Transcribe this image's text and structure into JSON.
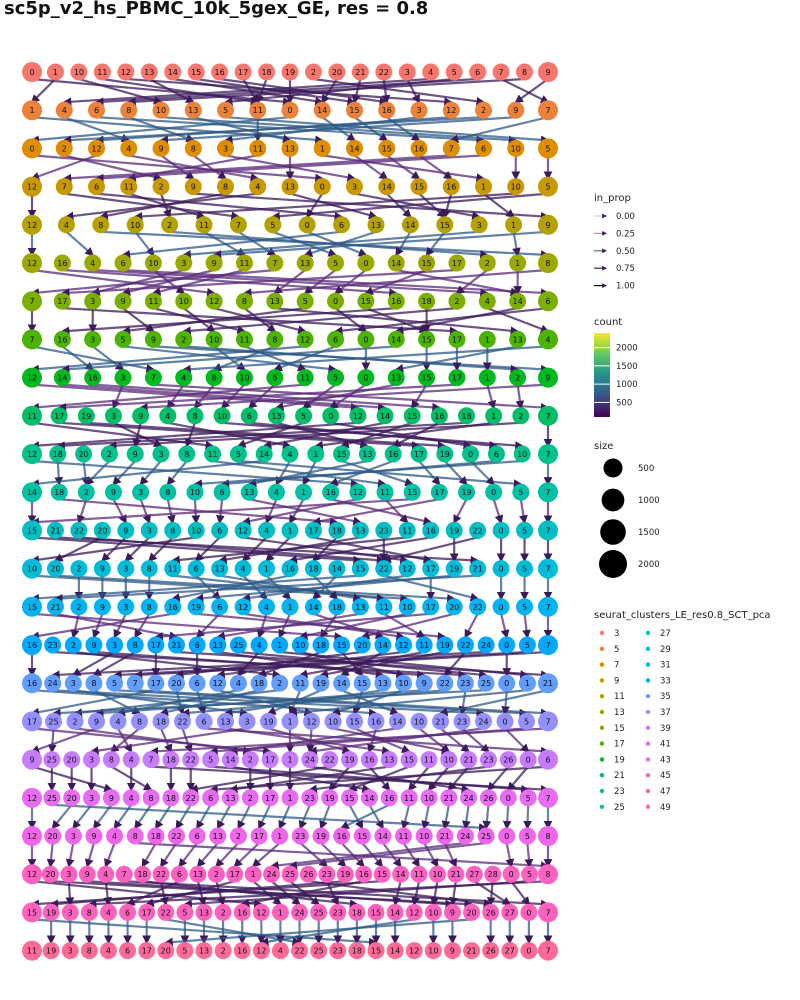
{
  "chart_data": {
    "type": "clustree",
    "title": "sc5p_v2_hs_PBMC_10k_5gex_GE, res = 0.8",
    "legend_in_prop": {
      "title": "in_prop",
      "entries": [
        "0.00",
        "0.25",
        "0.50",
        "0.75",
        "1.00"
      ]
    },
    "legend_count": {
      "title": "count",
      "ticks": [
        {
          "label": "2000",
          "value": 2000
        },
        {
          "label": "1500",
          "value": 1500
        },
        {
          "label": "1000",
          "value": 1000
        },
        {
          "label": "500",
          "value": 500
        }
      ],
      "range": [
        100,
        2400
      ]
    },
    "legend_size": {
      "title": "size",
      "entries": [
        {
          "label": "500",
          "value": 500
        },
        {
          "label": "1000",
          "value": 1000
        },
        {
          "label": "1500",
          "value": 1500
        },
        {
          "label": "2000",
          "value": 2000
        }
      ]
    },
    "legend_clusters": {
      "title": "seurat_clusters_LE_res0.8_SCT_pca",
      "levels": [
        "3",
        "5",
        "7",
        "9",
        "11",
        "13",
        "15",
        "17",
        "19",
        "21",
        "23",
        "25",
        "27",
        "29",
        "31",
        "33",
        "35",
        "37",
        "39",
        "41",
        "43",
        "45",
        "47",
        "49"
      ],
      "colors": [
        "#F8766D",
        "#EC8239",
        "#DE8C00",
        "#C99800",
        "#B4A100",
        "#9CA700",
        "#7CAE00",
        "#4CB400",
        "#00B81F",
        "#00BE67",
        "#00C08B",
        "#00C0A5",
        "#00BFC4",
        "#00BCD8",
        "#00B4EF",
        "#00A9FF",
        "#619CFF",
        "#9590FF",
        "#C77CFF",
        "#E76BF3",
        "#F066EA",
        "#FF61C3",
        "#FF62BC",
        "#FF6A98"
      ]
    },
    "rows": [
      {
        "level": "3",
        "nodes": [
          "0",
          "1",
          "10",
          "11",
          "12",
          "13",
          "14",
          "15",
          "16",
          "17",
          "18",
          "19",
          "2",
          "20",
          "21",
          "22",
          "3",
          "4",
          "5",
          "6",
          "7",
          "8",
          "9"
        ]
      },
      {
        "level": "5",
        "nodes": [
          "1",
          "4",
          "6",
          "8",
          "10",
          "13",
          "5",
          "11",
          "0",
          "14",
          "15",
          "16",
          "3",
          "12",
          "2",
          "9",
          "7"
        ]
      },
      {
        "level": "7",
        "nodes": [
          "0",
          "2",
          "12",
          "4",
          "9",
          "8",
          "3",
          "11",
          "13",
          "1",
          "14",
          "15",
          "16",
          "7",
          "6",
          "10",
          "5"
        ]
      },
      {
        "level": "9",
        "nodes": [
          "12",
          "7",
          "6",
          "11",
          "2",
          "9",
          "8",
          "4",
          "13",
          "0",
          "3",
          "14",
          "15",
          "16",
          "1",
          "10",
          "5"
        ]
      },
      {
        "level": "11",
        "nodes": [
          "12",
          "4",
          "8",
          "10",
          "2",
          "11",
          "7",
          "5",
          "0",
          "6",
          "13",
          "14",
          "15",
          "3",
          "1",
          "9"
        ]
      },
      {
        "level": "13",
        "nodes": [
          "12",
          "16",
          "4",
          "6",
          "10",
          "3",
          "9",
          "11",
          "7",
          "13",
          "5",
          "0",
          "14",
          "15",
          "17",
          "2",
          "1",
          "8"
        ]
      },
      {
        "level": "15",
        "nodes": [
          "7",
          "17",
          "3",
          "9",
          "11",
          "10",
          "12",
          "8",
          "13",
          "5",
          "0",
          "15",
          "16",
          "18",
          "2",
          "4",
          "14",
          "6"
        ]
      },
      {
        "level": "17",
        "nodes": [
          "7",
          "16",
          "3",
          "5",
          "9",
          "2",
          "10",
          "11",
          "8",
          "12",
          "6",
          "0",
          "14",
          "15",
          "17",
          "1",
          "13",
          "4"
        ]
      },
      {
        "level": "19",
        "nodes": [
          "12",
          "14",
          "16",
          "3",
          "7",
          "4",
          "8",
          "10",
          "6",
          "11",
          "5",
          "0",
          "13",
          "15",
          "17",
          "1",
          "2",
          "9"
        ]
      },
      {
        "level": "21",
        "nodes": [
          "11",
          "17",
          "19",
          "3",
          "9",
          "4",
          "8",
          "10",
          "6",
          "13",
          "5",
          "0",
          "12",
          "14",
          "15",
          "16",
          "18",
          "1",
          "2",
          "7"
        ]
      },
      {
        "level": "23",
        "nodes": [
          "12",
          "18",
          "20",
          "2",
          "9",
          "3",
          "8",
          "11",
          "5",
          "14",
          "4",
          "1",
          "15",
          "13",
          "16",
          "17",
          "19",
          "0",
          "6",
          "10",
          "7"
        ]
      },
      {
        "level": "25",
        "nodes": [
          "14",
          "18",
          "2",
          "9",
          "3",
          "8",
          "10",
          "6",
          "13",
          "4",
          "1",
          "16",
          "12",
          "11",
          "15",
          "17",
          "19",
          "0",
          "5",
          "7"
        ]
      },
      {
        "level": "27",
        "nodes": [
          "15",
          "21",
          "22",
          "20",
          "9",
          "3",
          "8",
          "10",
          "6",
          "12",
          "4",
          "1",
          "17",
          "18",
          "13",
          "23",
          "11",
          "16",
          "19",
          "22",
          "0",
          "5",
          "7"
        ]
      },
      {
        "level": "29",
        "nodes": [
          "10",
          "20",
          "2",
          "9",
          "3",
          "8",
          "11",
          "6",
          "13",
          "4",
          "1",
          "16",
          "18",
          "14",
          "15",
          "22",
          "12",
          "17",
          "19",
          "21",
          "0",
          "5",
          "7"
        ]
      },
      {
        "level": "31",
        "nodes": [
          "15",
          "21",
          "2",
          "9",
          "3",
          "8",
          "16",
          "19",
          "6",
          "12",
          "4",
          "1",
          "14",
          "18",
          "13",
          "11",
          "10",
          "17",
          "20",
          "22",
          "0",
          "5",
          "7"
        ]
      },
      {
        "level": "33",
        "nodes": [
          "16",
          "23",
          "2",
          "9",
          "3",
          "8",
          "17",
          "21",
          "6",
          "13",
          "25",
          "4",
          "1",
          "10",
          "18",
          "15",
          "20",
          "14",
          "12",
          "11",
          "19",
          "22",
          "24",
          "0",
          "5",
          "7"
        ]
      },
      {
        "level": "35",
        "nodes": [
          "16",
          "24",
          "3",
          "8",
          "5",
          "7",
          "17",
          "20",
          "6",
          "12",
          "4",
          "18",
          "2",
          "11",
          "19",
          "14",
          "15",
          "13",
          "10",
          "9",
          "22",
          "23",
          "25",
          "0",
          "1",
          "21"
        ]
      },
      {
        "level": "37",
        "nodes": [
          "17",
          "25",
          "2",
          "9",
          "4",
          "8",
          "18",
          "22",
          "6",
          "13",
          "3",
          "19",
          "1",
          "12",
          "10",
          "15",
          "16",
          "14",
          "10",
          "21",
          "23",
          "24",
          "0",
          "5",
          "7"
        ]
      },
      {
        "level": "39",
        "nodes": [
          "9",
          "25",
          "20",
          "3",
          "8",
          "4",
          "7",
          "18",
          "22",
          "5",
          "14",
          "2",
          "17",
          "1",
          "24",
          "22",
          "19",
          "16",
          "13",
          "15",
          "11",
          "10",
          "21",
          "23",
          "26",
          "0",
          "6"
        ]
      },
      {
        "level": "41",
        "nodes": [
          "12",
          "25",
          "20",
          "3",
          "9",
          "4",
          "8",
          "18",
          "22",
          "6",
          "13",
          "2",
          "17",
          "1",
          "23",
          "19",
          "15",
          "14",
          "16",
          "11",
          "10",
          "21",
          "24",
          "26",
          "0",
          "5",
          "7"
        ]
      },
      {
        "level": "43",
        "nodes": [
          "12",
          "20",
          "3",
          "9",
          "4",
          "8",
          "18",
          "22",
          "6",
          "13",
          "2",
          "17",
          "1",
          "23",
          "19",
          "16",
          "15",
          "14",
          "11",
          "10",
          "21",
          "24",
          "25",
          "0",
          "5",
          "8"
        ]
      },
      {
        "level": "45",
        "nodes": [
          "12",
          "20",
          "3",
          "9",
          "4",
          "7",
          "18",
          "22",
          "6",
          "13",
          "2",
          "17",
          "1",
          "24",
          "25",
          "26",
          "23",
          "19",
          "16",
          "15",
          "14",
          "11",
          "10",
          "21",
          "27",
          "28",
          "0",
          "5",
          "8"
        ]
      },
      {
        "level": "47",
        "nodes": [
          "15",
          "19",
          "3",
          "8",
          "4",
          "6",
          "17",
          "22",
          "5",
          "13",
          "2",
          "16",
          "12",
          "1",
          "24",
          "25",
          "23",
          "18",
          "15",
          "14",
          "12",
          "10",
          "9",
          "20",
          "26",
          "27",
          "0",
          "7"
        ]
      },
      {
        "level": "49",
        "nodes": [
          "11",
          "19",
          "3",
          "8",
          "4",
          "6",
          "17",
          "20",
          "5",
          "13",
          "2",
          "16",
          "12",
          "4",
          "22",
          "25",
          "23",
          "18",
          "15",
          "14",
          "12",
          "10",
          "9",
          "21",
          "26",
          "27",
          "0",
          "7"
        ]
      }
    ]
  }
}
